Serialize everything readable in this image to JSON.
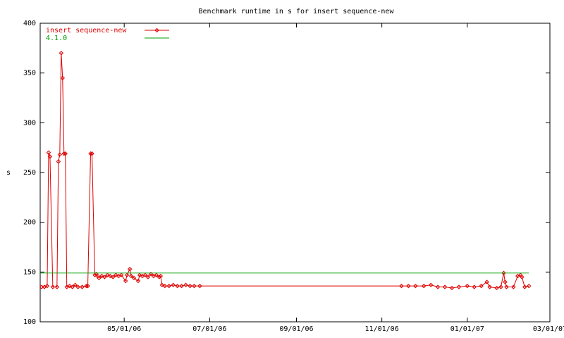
{
  "chart_data": {
    "type": "line",
    "title": "Benchmark runtime in s for insert sequence-new",
    "ylabel": "s",
    "xlim": [
      "2006-03-02",
      "2007-03-01"
    ],
    "xticks": [
      {
        "value": "2006-05-01",
        "label": "05/01/06"
      },
      {
        "value": "2006-07-01",
        "label": "07/01/06"
      },
      {
        "value": "2006-09-01",
        "label": "09/01/06"
      },
      {
        "value": "2006-11-01",
        "label": "11/01/06"
      },
      {
        "value": "2007-01-01",
        "label": "01/01/07"
      },
      {
        "value": "2007-03-01",
        "label": "03/01/07"
      }
    ],
    "ylim": [
      100,
      400
    ],
    "yticks": [
      100,
      150,
      200,
      250,
      300,
      350,
      400
    ],
    "grid": false,
    "legend": "top-left",
    "series": [
      {
        "name": "insert sequence-new",
        "color": "#dd0000",
        "markers": true,
        "x": [
          "2006-03-03",
          "2006-03-05",
          "2006-03-07",
          "2006-03-08",
          "2006-03-09",
          "2006-03-11",
          "2006-03-14",
          "2006-03-15",
          "2006-03-16",
          "2006-03-17",
          "2006-03-18",
          "2006-03-19",
          "2006-03-20",
          "2006-03-21",
          "2006-03-23",
          "2006-03-25",
          "2006-03-27",
          "2006-03-29",
          "2006-04-01",
          "2006-04-04",
          "2006-04-05",
          "2006-04-07",
          "2006-04-08",
          "2006-04-10",
          "2006-04-11",
          "2006-04-12",
          "2006-04-13",
          "2006-04-15",
          "2006-04-17",
          "2006-04-19",
          "2006-04-21",
          "2006-04-23",
          "2006-04-25",
          "2006-04-27",
          "2006-04-29",
          "2006-05-02",
          "2006-05-03",
          "2006-05-05",
          "2006-05-06",
          "2006-05-08",
          "2006-05-11",
          "2006-05-12",
          "2006-05-14",
          "2006-05-16",
          "2006-05-18",
          "2006-05-20",
          "2006-05-22",
          "2006-05-24",
          "2006-05-26",
          "2006-05-27",
          "2006-05-28",
          "2006-05-30",
          "2006-06-02",
          "2006-06-05",
          "2006-06-08",
          "2006-06-11",
          "2006-06-14",
          "2006-06-17",
          "2006-06-20",
          "2006-06-24",
          "2006-11-15",
          "2006-11-20",
          "2006-11-25",
          "2006-12-01",
          "2006-12-06",
          "2006-12-11",
          "2006-12-16",
          "2006-12-21",
          "2006-12-26",
          "2007-01-01",
          "2007-01-06",
          "2007-01-11",
          "2007-01-15",
          "2007-01-17",
          "2007-01-22",
          "2007-01-25",
          "2007-01-27",
          "2007-01-28",
          "2007-01-29",
          "2007-02-03",
          "2007-02-06",
          "2007-02-08",
          "2007-02-09",
          "2007-02-11",
          "2007-02-14"
        ],
        "values": [
          135,
          135,
          136,
          270,
          266,
          135,
          135,
          261,
          268,
          370,
          345,
          269,
          269,
          135,
          136,
          135,
          137,
          135,
          135,
          136,
          136,
          269,
          269,
          147,
          148,
          146,
          144,
          146,
          145,
          147,
          146,
          145,
          147,
          146,
          147,
          141,
          147,
          153,
          146,
          144,
          141,
          147,
          146,
          147,
          145,
          148,
          146,
          147,
          145,
          146,
          137,
          136,
          136,
          137,
          136,
          136,
          137,
          136,
          136,
          136,
          136,
          136,
          136,
          136,
          137,
          135,
          135,
          134,
          135,
          136,
          135,
          136,
          140,
          135,
          134,
          135,
          149,
          140,
          135,
          135,
          146,
          147,
          145,
          135,
          136
        ]
      },
      {
        "name": "4.1.0",
        "color": "#00a000",
        "markers": false,
        "x": [
          "2006-03-02",
          "2007-02-14"
        ],
        "values": [
          149,
          149
        ]
      }
    ]
  }
}
